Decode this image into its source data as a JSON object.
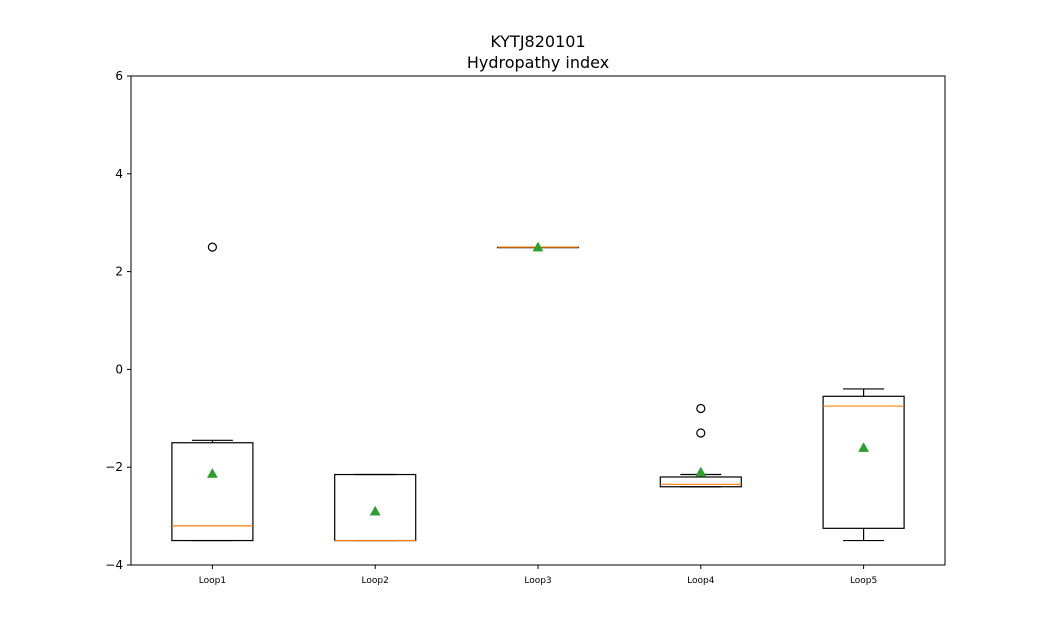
{
  "chart_data": {
    "type": "box",
    "title": "KYTJ820101",
    "subtitle": "Hydropathy index",
    "xlabel": "",
    "ylabel": "",
    "ylim": [
      -4,
      6
    ],
    "yticks": [
      "6",
      "4",
      "2",
      "0",
      "−2",
      "−4"
    ],
    "categories": [
      "Loop1",
      "Loop2",
      "Loop3",
      "Loop4",
      "Loop5"
    ],
    "boxes": [
      {
        "category": "Loop1",
        "whislo": -3.5,
        "q1": -3.5,
        "med": -3.2,
        "q3": -1.5,
        "whishi": -1.45,
        "mean": -2.13,
        "fliers": [
          2.5
        ]
      },
      {
        "category": "Loop2",
        "whislo": -3.5,
        "q1": -3.5,
        "med": -3.5,
        "q3": -2.15,
        "whishi": -2.15,
        "mean": -2.9,
        "fliers": []
      },
      {
        "category": "Loop3",
        "whislo": 2.5,
        "q1": 2.5,
        "med": 2.5,
        "q3": 2.5,
        "whishi": 2.5,
        "mean": 2.5,
        "fliers": []
      },
      {
        "category": "Loop4",
        "whislo": -2.4,
        "q1": -2.4,
        "med": -2.35,
        "q3": -2.2,
        "whishi": -2.15,
        "mean": -2.1,
        "fliers": [
          -0.8,
          -1.3
        ]
      },
      {
        "category": "Loop5",
        "whislo": -3.5,
        "q1": -3.25,
        "med": -0.75,
        "q3": -0.55,
        "whishi": -0.4,
        "mean": -1.6,
        "fliers": []
      }
    ],
    "colors": {
      "box": "#000000",
      "median": "#ff7f0e",
      "mean": "#2ca02c",
      "flier": "#000000"
    },
    "grid": false,
    "legend": "none"
  }
}
